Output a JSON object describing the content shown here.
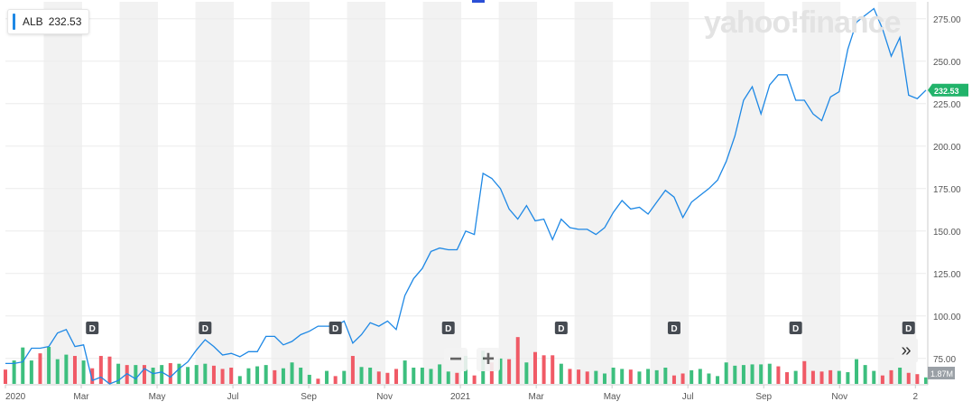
{
  "ticker": {
    "symbol": "ALB",
    "price": "232.53"
  },
  "logo_text": "yahoo!finance",
  "current_price_tag": "232.53",
  "volume_tag": "1.87M",
  "controls": {
    "zoom_out": "−",
    "zoom_in": "+",
    "forward": "»"
  },
  "colors": {
    "line": "#1e88e5",
    "volume_up": "#3dbf7e",
    "volume_down": "#f05a66",
    "band": "#f2f2f2",
    "price_tag": "#21b36a",
    "dividend": "#464b52"
  },
  "chart_data": {
    "type": "line",
    "title": "",
    "xlabel": "",
    "ylabel": "",
    "x_ticks": [
      "2020",
      "Mar",
      "May",
      "Jul",
      "Sep",
      "Nov",
      "2021",
      "Mar",
      "May",
      "Jul",
      "Sep",
      "Nov",
      "2"
    ],
    "y_ticks": [
      "275.00",
      "250.00",
      "225.00",
      "200.00",
      "175.00",
      "150.00",
      "125.00",
      "100.00",
      "75.00"
    ],
    "ylim": [
      60,
      285
    ],
    "grid": true,
    "series": [
      {
        "values": [
          72,
          72,
          73,
          81,
          81,
          82,
          90,
          92,
          82,
          83,
          62,
          64,
          60,
          62,
          66,
          63,
          69,
          66,
          67,
          64,
          69,
          73,
          80,
          86,
          82,
          77,
          78,
          76,
          79,
          79,
          88,
          88,
          83,
          85,
          89,
          91,
          94,
          94,
          94,
          97,
          84,
          89,
          96,
          94,
          97,
          92,
          112,
          122,
          128,
          138,
          140,
          139,
          139,
          150,
          148,
          184,
          181,
          175,
          163,
          157,
          165,
          156,
          157,
          145,
          157,
          152,
          151,
          151,
          148,
          152,
          161,
          168,
          163,
          164,
          160,
          167,
          174,
          170,
          158,
          167,
          171,
          175,
          180,
          191,
          206,
          227,
          235,
          219,
          236,
          242,
          242,
          227,
          227,
          219,
          215,
          229,
          232,
          257,
          273,
          277,
          281,
          269,
          253,
          264,
          230,
          228,
          233
        ]
      }
    ],
    "volume": {
      "values": [
        22,
        36,
        56,
        36,
        47,
        57,
        38,
        45,
        43,
        36,
        24,
        43,
        42,
        31,
        29,
        29,
        29,
        25,
        29,
        32,
        31,
        26,
        29,
        31,
        28,
        23,
        25,
        12,
        24,
        27,
        29,
        21,
        24,
        33,
        25,
        14,
        8,
        20,
        12,
        20,
        43,
        26,
        25,
        19,
        17,
        23,
        36,
        25,
        25,
        23,
        30,
        19,
        17,
        43,
        13,
        51,
        33,
        39,
        38,
        72,
        33,
        49,
        44,
        44,
        31,
        23,
        22,
        19,
        20,
        16,
        25,
        23,
        22,
        19,
        23,
        21,
        25,
        13,
        16,
        21,
        23,
        16,
        12,
        33,
        28,
        29,
        30,
        30,
        31,
        27,
        18,
        20,
        35,
        20,
        19,
        21,
        20,
        18,
        38,
        29,
        20,
        13,
        21,
        25,
        17,
        15,
        10
      ],
      "up": [
        0,
        1,
        1,
        1,
        0,
        1,
        1,
        1,
        0,
        1,
        0,
        0,
        0,
        1,
        0,
        1,
        0,
        1,
        1,
        0,
        1,
        1,
        1,
        1,
        0,
        0,
        0,
        1,
        1,
        1,
        1,
        0,
        1,
        1,
        1,
        1,
        0,
        1,
        0,
        1,
        0,
        1,
        1,
        0,
        0,
        0,
        1,
        1,
        1,
        1,
        1,
        1,
        0,
        1,
        0,
        1,
        0,
        1,
        0,
        0,
        1,
        0,
        0,
        0,
        1,
        0,
        0,
        0,
        1,
        1,
        1,
        1,
        0,
        1,
        1,
        1,
        1,
        0,
        0,
        1,
        1,
        1,
        1,
        1,
        1,
        1,
        1,
        1,
        1,
        0,
        0,
        1,
        0,
        0,
        0,
        0,
        1,
        1,
        1,
        1,
        1,
        0,
        0,
        1,
        0,
        0,
        1
      ]
    },
    "volume_ylim": [
      0,
      100
    ],
    "dividends": [
      {
        "label": "D",
        "index": 10
      },
      {
        "label": "D",
        "index": 23
      },
      {
        "label": "D",
        "index": 38
      },
      {
        "label": "D",
        "index": 51
      },
      {
        "label": "D",
        "index": 64
      },
      {
        "label": "D",
        "index": 77
      },
      {
        "label": "D",
        "index": 91
      },
      {
        "label": "D",
        "index": 104
      }
    ]
  }
}
